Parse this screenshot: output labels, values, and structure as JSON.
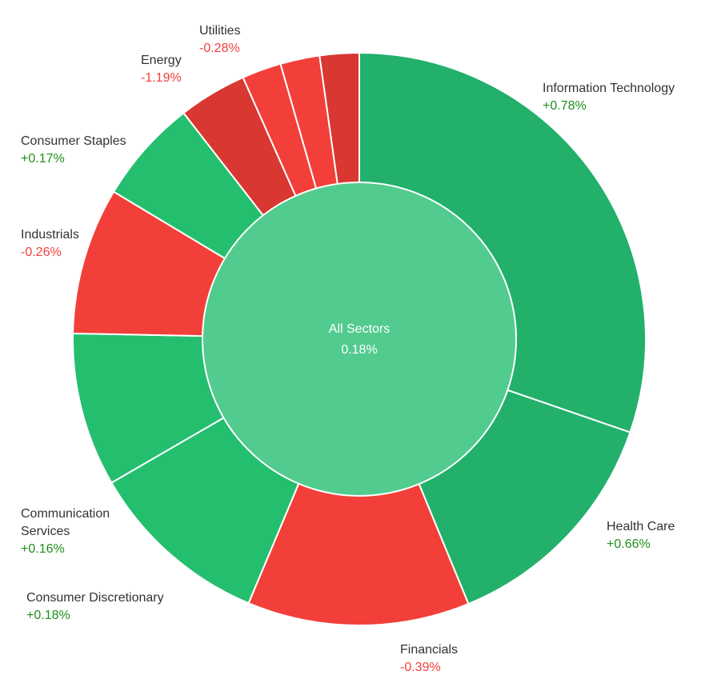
{
  "chart_data": {
    "type": "pie",
    "center": {
      "label": "All Sectors",
      "value": "0.18%"
    },
    "slices": [
      {
        "name": "Information Technology",
        "change": "+0.78%",
        "weight": 31.4,
        "direction": "up"
      },
      {
        "name": "Health Care",
        "change": "+0.66%",
        "weight": 14.0,
        "direction": "up"
      },
      {
        "name": "Financials",
        "change": "-0.39%",
        "weight": 13.0,
        "direction": "down"
      },
      {
        "name": "Consumer Discretionary",
        "change": "+0.18%",
        "weight": 10.7,
        "direction": "up"
      },
      {
        "name": [
          "Communication",
          "Services"
        ],
        "change": "+0.16%",
        "weight": 9.0,
        "direction": "up"
      },
      {
        "name": "Industrials",
        "change": "-0.26%",
        "weight": 8.6,
        "direction": "down"
      },
      {
        "name": "Consumer Staples",
        "change": "+0.17%",
        "weight": 6.1,
        "direction": "up"
      },
      {
        "name": "Energy",
        "change": "-1.19%",
        "weight": 4.0,
        "direction": "down"
      },
      {
        "name": "",
        "change": "",
        "weight": 2.3,
        "direction": "down"
      },
      {
        "name": "",
        "change": "",
        "weight": 2.3,
        "direction": "down"
      },
      {
        "name": "Utilities",
        "change": "-0.28%",
        "weight": 2.3,
        "direction": "down"
      }
    ]
  },
  "colors": {
    "up_slice": "#22b06b",
    "up_slice_alt": "#24be6f",
    "down_slice": "#f23f3a",
    "down_slice_dark": "#d93732",
    "center_fill": "#52cb8f",
    "up_text": "#1f8f1f",
    "down_text": "#f23f3a",
    "slice_border": "#ffffff"
  }
}
